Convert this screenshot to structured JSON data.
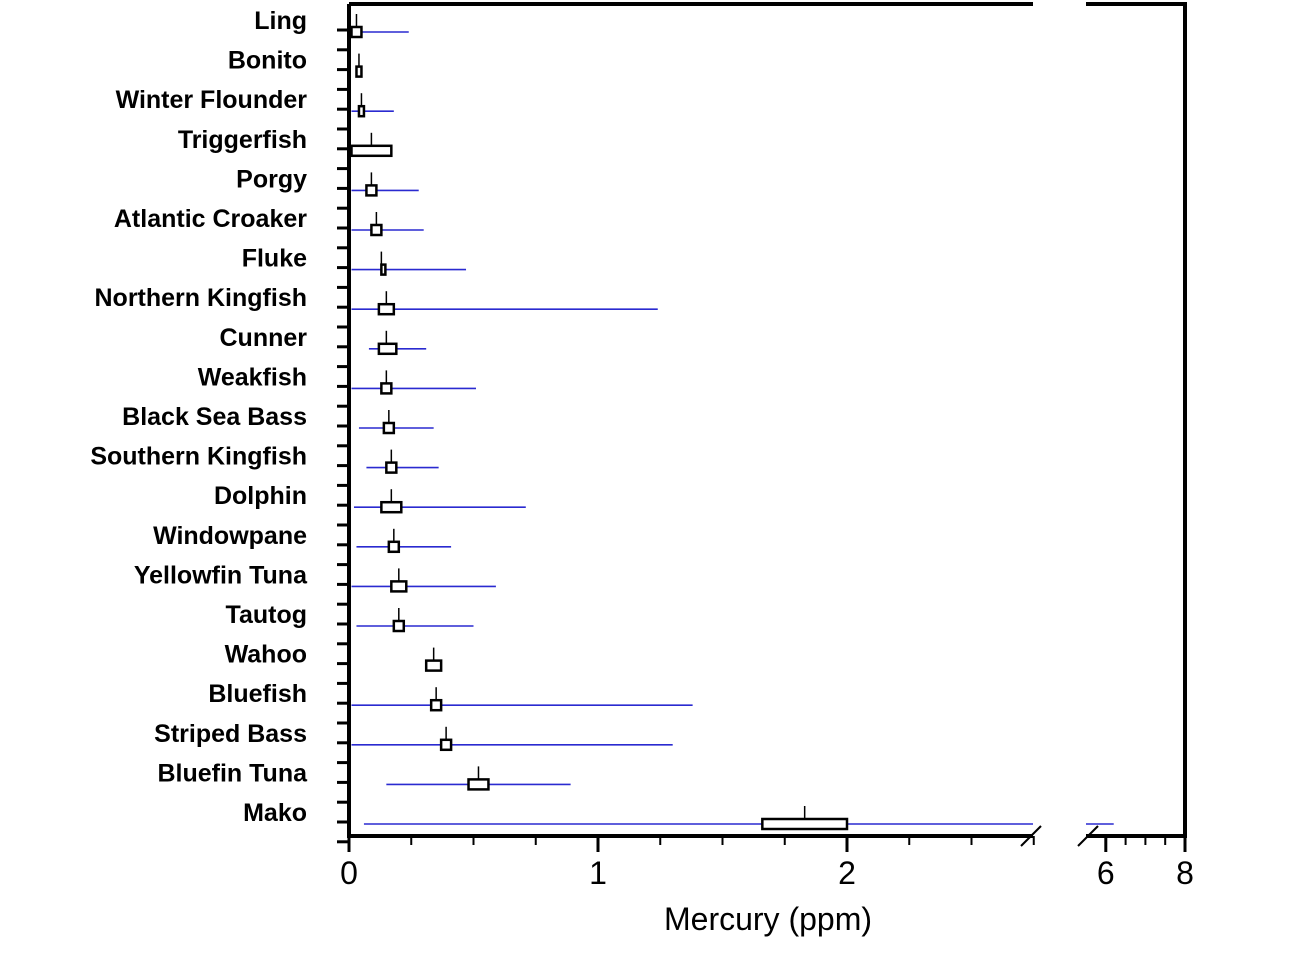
{
  "chart_data": {
    "type": "box-range",
    "xlabel": "Mercury (ppm)",
    "ylabel": "",
    "x_axis": {
      "scale": "broken",
      "segment_1_range": [
        0,
        2.75
      ],
      "segment_2_range": [
        5.5,
        8
      ],
      "tick_values": [
        0,
        1,
        2,
        6,
        8
      ],
      "tick_labels": [
        "0",
        "1",
        "2",
        "6",
        "8"
      ]
    },
    "categories": [
      "Ling",
      "Bonito",
      "Winter Flounder",
      "Triggerfish",
      "Porgy",
      "Atlantic Croaker",
      "Fluke",
      "Northern Kingfish",
      "Cunner",
      "Weakfish",
      "Black Sea Bass",
      "Southern Kingfish",
      "Dolphin",
      "Windowpane",
      "Yellowfin Tuna",
      "Tautog",
      "Wahoo",
      "Bluefish",
      "Striped Bass",
      "Bluefin Tuna",
      "Mako"
    ],
    "series": [
      {
        "mean": [
          0.03,
          0.04,
          0.05,
          0.09,
          0.09,
          0.11,
          0.13,
          0.15,
          0.15,
          0.15,
          0.16,
          0.17,
          0.17,
          0.18,
          0.2,
          0.2,
          0.34,
          0.35,
          0.39,
          0.52,
          1.83
        ],
        "ci_low": [
          0.01,
          0.03,
          0.04,
          0.01,
          0.07,
          0.09,
          0.13,
          0.12,
          0.12,
          0.13,
          0.14,
          0.15,
          0.13,
          0.16,
          0.17,
          0.18,
          0.31,
          0.33,
          0.37,
          0.48,
          1.66
        ],
        "ci_high": [
          0.05,
          0.05,
          0.06,
          0.17,
          0.11,
          0.13,
          0.14,
          0.18,
          0.19,
          0.17,
          0.18,
          0.19,
          0.21,
          0.2,
          0.23,
          0.22,
          0.37,
          0.37,
          0.41,
          0.56,
          2.0
        ],
        "range_min": [
          0.01,
          null,
          0.01,
          null,
          0.01,
          0.01,
          0.01,
          0.01,
          0.08,
          0.01,
          0.04,
          0.07,
          0.02,
          0.03,
          0.01,
          0.03,
          null,
          0.01,
          0.01,
          0.15,
          0.06
        ],
        "range_max": [
          0.24,
          null,
          0.18,
          null,
          0.28,
          0.3,
          0.47,
          1.24,
          0.31,
          0.51,
          0.34,
          0.36,
          0.71,
          0.41,
          0.59,
          0.5,
          null,
          1.38,
          1.3,
          0.89,
          6.2
        ]
      }
    ],
    "colors": {
      "axis": "#000000",
      "range_line": "#2a2ad0",
      "box_fill": "#ffffff",
      "box_stroke": "#000000"
    },
    "grid": false,
    "legend": "none"
  }
}
